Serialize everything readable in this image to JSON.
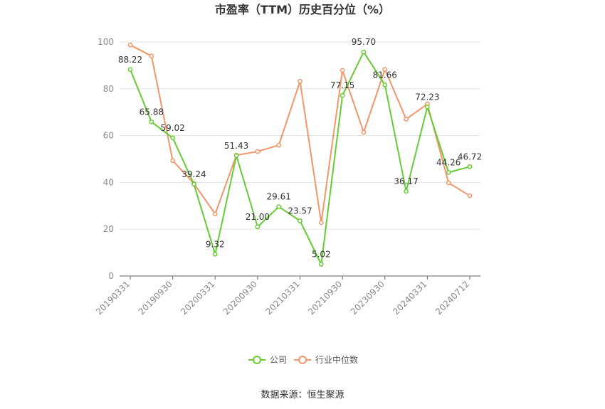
{
  "chart_data": {
    "type": "line",
    "title": "市盈率（TTM）历史百分位（%）",
    "source": "数据来源：恒生聚源",
    "xlabel": "",
    "ylabel": "",
    "ylim": [
      0,
      100
    ],
    "yticks": [
      0,
      20,
      40,
      60,
      80,
      100
    ],
    "grid": true,
    "legend_position": "bottom-center",
    "x_tick_labels": [
      {
        "index": 0,
        "label": "20190331"
      },
      {
        "index": 2,
        "label": "20190930"
      },
      {
        "index": 4,
        "label": "20200331"
      },
      {
        "index": 6,
        "label": "20200930"
      },
      {
        "index": 8,
        "label": "20210331"
      },
      {
        "index": 10,
        "label": "20210930"
      },
      {
        "index": 12,
        "label": "20230930"
      },
      {
        "index": 14,
        "label": "20240331"
      },
      {
        "index": 16,
        "label": "20240712"
      }
    ],
    "series": [
      {
        "name": "公司",
        "color": "#66cc33",
        "values": [
          88.22,
          65.88,
          59.02,
          39.24,
          9.32,
          51.43,
          21.0,
          29.61,
          23.57,
          5.02,
          77.15,
          95.7,
          81.66,
          36.17,
          72.23,
          44.26,
          46.72
        ],
        "labels": [
          "88.22",
          "65.88",
          "59.02",
          "39.24",
          "9.32",
          "51.43",
          "21.00",
          "29.61",
          "23.57",
          "5.02",
          "77.15",
          "95.70",
          "81.66",
          "36.17",
          "72.23",
          "44.26",
          "46.72"
        ]
      },
      {
        "name": "行业中位数",
        "color": "#f4956a",
        "values": [
          98.7,
          94.0,
          49.3,
          39.5,
          26.5,
          51.6,
          53.2,
          55.9,
          83.2,
          22.8,
          87.9,
          61.4,
          88.3,
          67.0,
          73.5,
          39.8,
          34.3
        ]
      }
    ]
  }
}
